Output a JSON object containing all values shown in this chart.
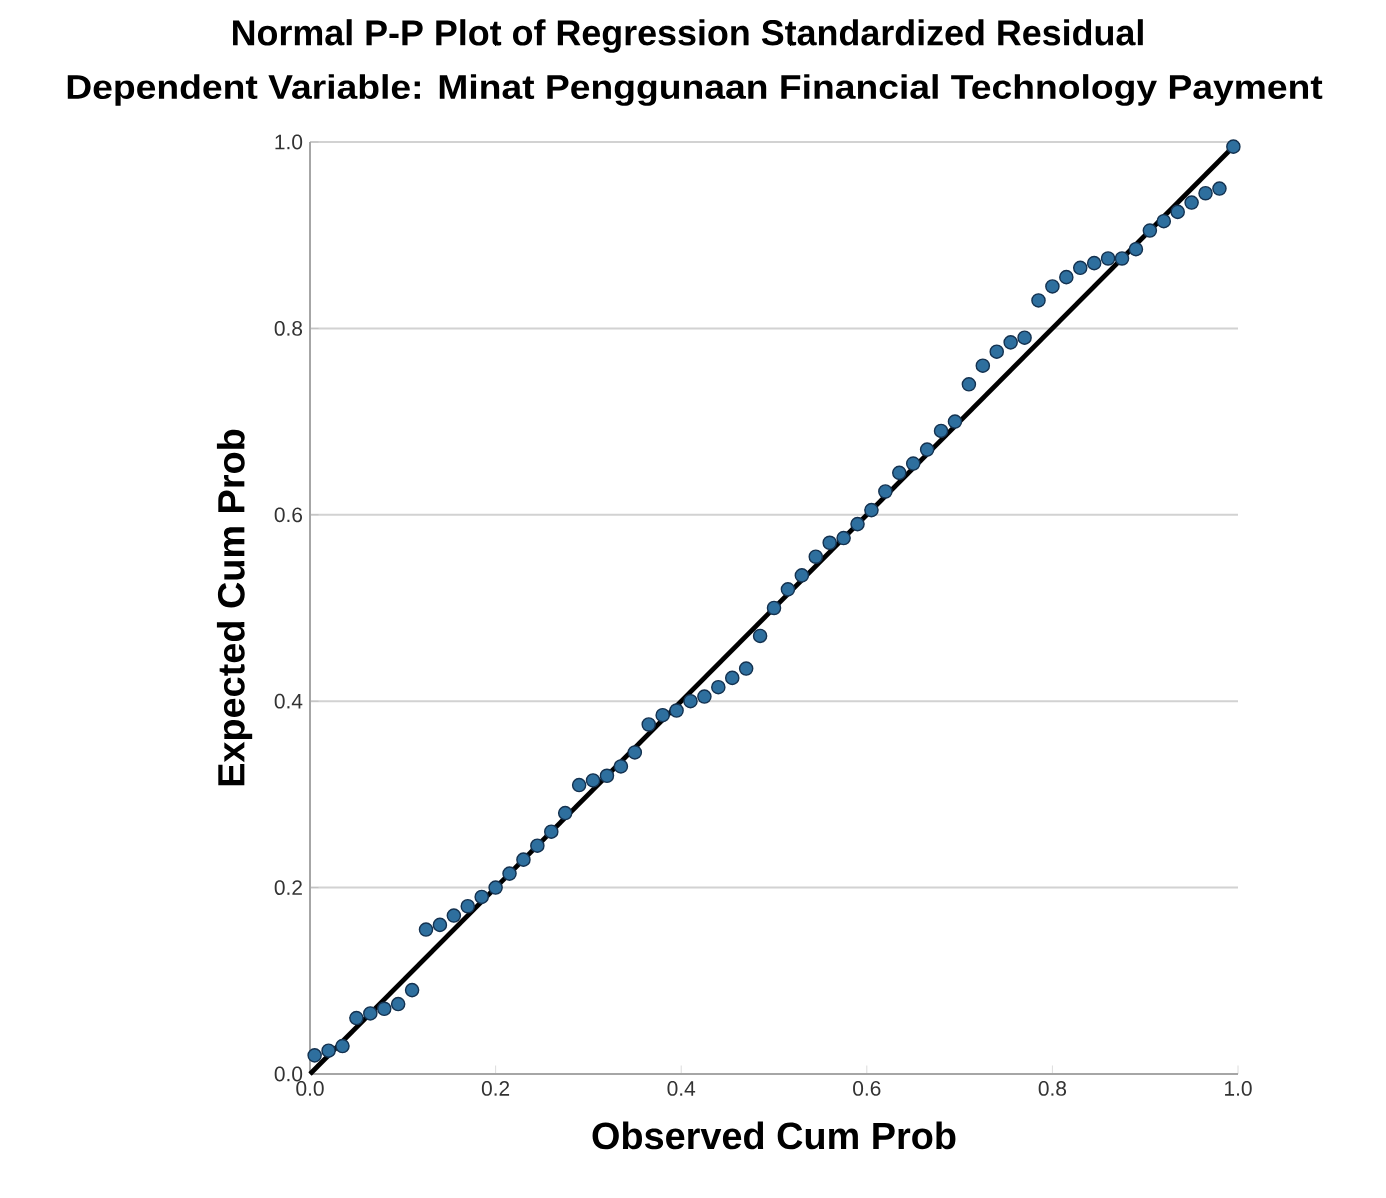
{
  "chart_data": {
    "type": "scatter",
    "title": "Normal P-P Plot of Regression Standardized Residual",
    "subtitle": "Dependent Variable: Minat Penggunaan Financial Technology Payment",
    "xlabel": "Observed Cum Prob",
    "ylabel": "Expected Cum Prob",
    "xlim": [
      0,
      1
    ],
    "ylim": [
      0,
      1
    ],
    "xticks": [
      {
        "value": 0,
        "label": "0.0"
      },
      {
        "value": 0.2,
        "label": "0.2"
      },
      {
        "value": 0.4,
        "label": "0.4"
      },
      {
        "value": 0.6,
        "label": "0.6"
      },
      {
        "value": 0.8,
        "label": "0.8"
      },
      {
        "value": 1,
        "label": "1.0"
      }
    ],
    "yticks": [
      {
        "value": 0,
        "label": "0.0"
      },
      {
        "value": 0.2,
        "label": "0.2"
      },
      {
        "value": 0.4,
        "label": "0.4"
      },
      {
        "value": 0.6,
        "label": "0.6"
      },
      {
        "value": 0.8,
        "label": "0.8"
      },
      {
        "value": 1,
        "label": "1.0"
      }
    ],
    "grid": "y",
    "marker": "circle",
    "series": [
      {
        "color": "#2e6f9e",
        "x": [
          0.005,
          0.02,
          0.035,
          0.05,
          0.065,
          0.08,
          0.095,
          0.11,
          0.125,
          0.14,
          0.155,
          0.17,
          0.185,
          0.2,
          0.215,
          0.23,
          0.245,
          0.26,
          0.275,
          0.29,
          0.305,
          0.32,
          0.335,
          0.35,
          0.365,
          0.38,
          0.395,
          0.41,
          0.425,
          0.44,
          0.455,
          0.47,
          0.485,
          0.5,
          0.515,
          0.53,
          0.545,
          0.56,
          0.575,
          0.59,
          0.605,
          0.62,
          0.635,
          0.65,
          0.665,
          0.68,
          0.695,
          0.71,
          0.725,
          0.74,
          0.755,
          0.77,
          0.785,
          0.8,
          0.815,
          0.83,
          0.845,
          0.86,
          0.875,
          0.89,
          0.905,
          0.92,
          0.935,
          0.95,
          0.965,
          0.98,
          0.995
        ],
        "values": [
          0.02,
          0.025,
          0.03,
          0.06,
          0.065,
          0.07,
          0.075,
          0.09,
          0.155,
          0.16,
          0.17,
          0.18,
          0.19,
          0.2,
          0.215,
          0.23,
          0.245,
          0.26,
          0.28,
          0.31,
          0.315,
          0.32,
          0.33,
          0.345,
          0.375,
          0.385,
          0.39,
          0.4,
          0.405,
          0.415,
          0.425,
          0.435,
          0.47,
          0.5,
          0.52,
          0.535,
          0.555,
          0.57,
          0.575,
          0.59,
          0.605,
          0.625,
          0.645,
          0.655,
          0.67,
          0.69,
          0.7,
          0.74,
          0.76,
          0.775,
          0.785,
          0.79,
          0.83,
          0.845,
          0.855,
          0.865,
          0.87,
          0.875,
          0.875,
          0.885,
          0.905,
          0.915,
          0.925,
          0.935,
          0.945,
          0.95,
          0.995
        ]
      },
      {
        "type": "line",
        "marker": "none",
        "color": "#000000",
        "x": [
          0,
          1
        ],
        "values": [
          0,
          1
        ]
      }
    ]
  }
}
